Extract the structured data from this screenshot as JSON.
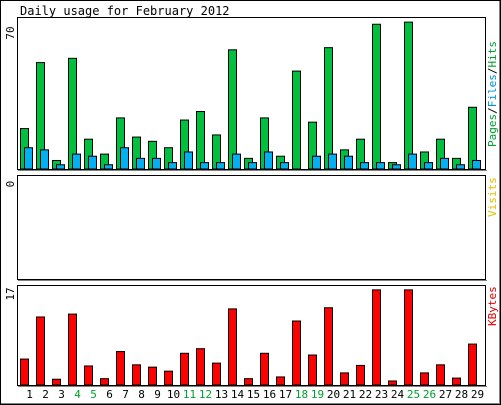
{
  "title": "Daily usage for February 2012",
  "panels": {
    "hits": {
      "scale_label": "70",
      "legend": [
        "Pages",
        "/",
        "Files",
        "/",
        "Hits"
      ],
      "legend_colors": [
        "#00a030",
        "#000000",
        "#0090d0",
        "#000000",
        "#00a030"
      ]
    },
    "visits": {
      "scale_label": "0",
      "legend": "Visits",
      "legend_color": "#e0c000"
    },
    "kbytes": {
      "scale_label": "17",
      "legend": "KBytes",
      "legend_color": "#e00000"
    }
  },
  "days": [
    "1",
    "2",
    "3",
    "4",
    "5",
    "6",
    "7",
    "8",
    "9",
    "10",
    "11",
    "12",
    "13",
    "14",
    "15",
    "16",
    "17",
    "18",
    "19",
    "20",
    "21",
    "22",
    "23",
    "24",
    "25",
    "26",
    "27",
    "28",
    "29"
  ],
  "weekend_days": [
    "4",
    "5",
    "11",
    "12",
    "18",
    "19",
    "25",
    "26"
  ],
  "colors": {
    "hits": "#00c040",
    "files": "#00b0f0",
    "kbytes": "#ff0000",
    "frame": "#000000",
    "day_label": "#000000",
    "weekend_label": "#00a030"
  },
  "chart_data": {
    "type": "bar",
    "title": "Daily usage for February 2012",
    "categories": [
      "1",
      "2",
      "3",
      "4",
      "5",
      "6",
      "7",
      "8",
      "9",
      "10",
      "11",
      "12",
      "13",
      "14",
      "15",
      "16",
      "17",
      "18",
      "19",
      "20",
      "21",
      "22",
      "23",
      "24",
      "25",
      "26",
      "27",
      "28",
      "29"
    ],
    "panels": [
      {
        "name": "Pages/Files/Hits",
        "ylim": [
          0,
          70
        ],
        "series": [
          {
            "name": "Hits",
            "values": [
              19,
              50,
              4,
              52,
              14,
              7,
              24,
              15,
              13,
              10,
              23,
              27,
              16,
              56,
              5,
              24,
              6,
              46,
              22,
              57,
              9,
              14,
              68,
              3,
              69,
              8,
              14,
              5,
              29
            ]
          },
          {
            "name": "Files",
            "values": [
              10,
              9,
              2,
              7,
              6,
              2,
              10,
              5,
              5,
              3,
              8,
              3,
              3,
              7,
              3,
              8,
              3,
              0,
              6,
              7,
              6,
              3,
              3,
              2,
              7,
              3,
              5,
              2,
              4
            ]
          },
          {
            "name": "Pages",
            "values": [
              0,
              0,
              0,
              0,
              0,
              0,
              0,
              0,
              0,
              0,
              0,
              0,
              0,
              0,
              0,
              0,
              0,
              0,
              0,
              0,
              0,
              0,
              0,
              0,
              0,
              0,
              0,
              0,
              0
            ]
          }
        ]
      },
      {
        "name": "Visits",
        "ylim": [
          0,
          1
        ],
        "series": [
          {
            "name": "Visits",
            "values": [
              0,
              0,
              0,
              0,
              0,
              0,
              0,
              0,
              0,
              0,
              0,
              0,
              0,
              0,
              0,
              0,
              0,
              0,
              0,
              0,
              0,
              0,
              0,
              0,
              0,
              0,
              0,
              0,
              0
            ]
          }
        ]
      },
      {
        "name": "KBytes",
        "ylim": [
          0,
          17
        ],
        "series": [
          {
            "name": "KBytes",
            "values": [
              4.5,
              11.8,
              1.0,
              12.3,
              3.3,
              1.1,
              5.8,
              3.5,
              3.1,
              2.4,
              5.5,
              6.3,
              3.8,
              13.2,
              1.1,
              5.5,
              1.4,
              11.1,
              5.2,
              13.4,
              2.1,
              3.4,
              16.5,
              0.7,
              16.5,
              2.1,
              3.5,
              1.2,
              7.1
            ]
          }
        ]
      }
    ]
  }
}
